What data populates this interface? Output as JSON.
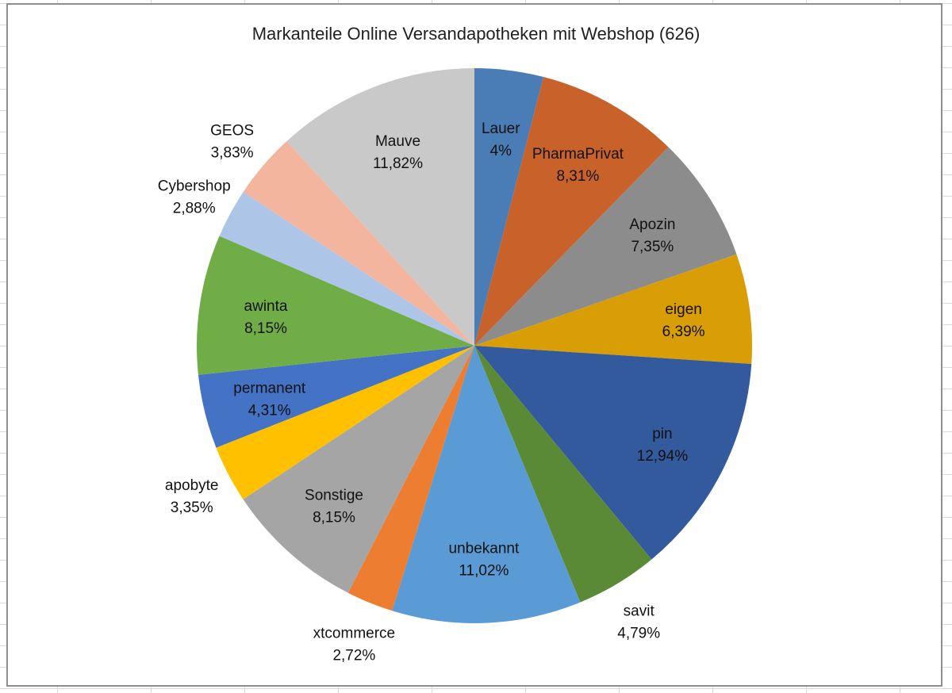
{
  "chart_data": {
    "type": "pie",
    "title": "Markanteile Online Versandapotheken mit Webshop (626)",
    "start_angle_deg": 0,
    "direction": "clockwise",
    "slices": [
      {
        "label": "Lauer",
        "value_text": "4%",
        "value": 4.0,
        "color": "#4a7db5",
        "label_inside": true
      },
      {
        "label": "PharmaPrivat",
        "value_text": "8,31%",
        "value": 8.31,
        "color": "#c8622a",
        "label_inside": true
      },
      {
        "label": "Apozin",
        "value_text": "7,35%",
        "value": 7.35,
        "color": "#8c8c8c",
        "label_inside": true
      },
      {
        "label": "eigen",
        "value_text": "6,39%",
        "value": 6.39,
        "color": "#d99e06",
        "label_inside": true
      },
      {
        "label": "pin",
        "value_text": "12,94%",
        "value": 12.94,
        "color": "#345a9e",
        "label_inside": true
      },
      {
        "label": "savit",
        "value_text": "4,79%",
        "value": 4.79,
        "color": "#5a8a36",
        "label_inside": false
      },
      {
        "label": "unbekannt",
        "value_text": "11,02%",
        "value": 11.02,
        "color": "#5b9bd5",
        "label_inside": true
      },
      {
        "label": "xtcommerce",
        "value_text": "2,72%",
        "value": 2.72,
        "color": "#ed7d31",
        "label_inside": false
      },
      {
        "label": "Sonstige",
        "value_text": "8,15%",
        "value": 8.15,
        "color": "#a5a5a5",
        "label_inside": true
      },
      {
        "label": "apobyte",
        "value_text": "3,35%",
        "value": 3.35,
        "color": "#ffc000",
        "label_inside": false
      },
      {
        "label": "permanent",
        "value_text": "4,31%",
        "value": 4.31,
        "color": "#4472c4",
        "label_inside": true
      },
      {
        "label": "awinta",
        "value_text": "8,15%",
        "value": 8.15,
        "color": "#70ad47",
        "label_inside": true
      },
      {
        "label": "Cybershop",
        "value_text": "2,88%",
        "value": 2.88,
        "color": "#adc6e8",
        "label_inside": false
      },
      {
        "label": "GEOS",
        "value_text": "3,83%",
        "value": 3.83,
        "color": "#f4b59e",
        "label_inside": false
      },
      {
        "label": "Mauve",
        "value_text": "11,82%",
        "value": 11.82,
        "color": "#c9c9c9",
        "label_inside": true
      }
    ]
  }
}
